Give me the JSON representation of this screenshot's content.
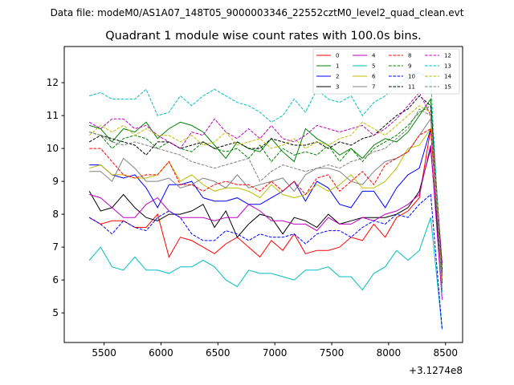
{
  "data_file_label": "Data file: modeM0/AS1A07_148T05_9000003346_22552cztM0_level2_quad_clean.evt",
  "chart_data": {
    "type": "line",
    "title": "Quadrant 1 module wise count rates with 100.0s bins.",
    "xlabel": "",
    "ylabel": "",
    "x_offset_label": "+3.1274e8",
    "xlim": [
      5150,
      8650
    ],
    "ylim": [
      4.1,
      13.1
    ],
    "x_ticks": [
      5500,
      6000,
      6500,
      7000,
      7500,
      8000,
      8500
    ],
    "y_ticks": [
      5,
      6,
      7,
      8,
      9,
      10,
      11,
      12
    ],
    "legend_location": "upper right",
    "x": [
      5370,
      5470,
      5570,
      5670,
      5770,
      5870,
      5970,
      6070,
      6170,
      6270,
      6370,
      6470,
      6570,
      6670,
      6770,
      6870,
      6970,
      7070,
      7170,
      7270,
      7370,
      7470,
      7570,
      7670,
      7770,
      7870,
      7970,
      8070,
      8170,
      8270,
      8370,
      8470
    ],
    "series": [
      {
        "name": "0",
        "color": "#ff0000",
        "dash": "solid",
        "values": [
          7.9,
          7.7,
          7.8,
          7.8,
          7.6,
          7.6,
          8.0,
          6.7,
          7.3,
          7.2,
          7.0,
          6.8,
          7.1,
          7.3,
          7.0,
          6.7,
          7.2,
          6.9,
          7.4,
          6.8,
          6.9,
          6.9,
          7.0,
          7.3,
          7.2,
          7.7,
          7.3,
          7.9,
          8.1,
          8.5,
          10.6,
          6.0
        ]
      },
      {
        "name": "1",
        "color": "#008000",
        "dash": "solid",
        "values": [
          10.7,
          10.6,
          10.2,
          10.6,
          10.5,
          10.8,
          10.3,
          10.6,
          10.8,
          10.7,
          10.5,
          10.1,
          9.7,
          10.2,
          10.0,
          9.9,
          10.3,
          9.9,
          9.6,
          10.6,
          10.3,
          10.1,
          9.8,
          10.0,
          9.7,
          10.1,
          10.3,
          10.2,
          10.5,
          11.0,
          11.5,
          6.2
        ]
      },
      {
        "name": "2",
        "color": "#0000ff",
        "dash": "solid",
        "values": [
          9.5,
          9.5,
          9.2,
          9.1,
          9.2,
          8.8,
          8.2,
          8.9,
          8.9,
          9.0,
          8.5,
          8.4,
          8.4,
          8.5,
          8.3,
          8.3,
          8.5,
          8.7,
          9.0,
          8.4,
          9.0,
          8.8,
          8.3,
          8.2,
          8.7,
          8.7,
          8.2,
          8.8,
          9.2,
          9.4,
          10.6,
          6.2
        ]
      },
      {
        "name": "3",
        "color": "#000000",
        "dash": "solid",
        "values": [
          8.7,
          8.1,
          8.2,
          8.6,
          8.2,
          7.9,
          7.8,
          8.0,
          8.0,
          8.1,
          8.3,
          7.6,
          8.1,
          7.3,
          7.7,
          8.0,
          7.9,
          7.4,
          7.9,
          7.8,
          7.6,
          8.0,
          7.7,
          7.8,
          7.9,
          7.9,
          7.9,
          8.0,
          8.2,
          8.7,
          10.0,
          5.9
        ]
      },
      {
        "name": "4",
        "color": "#bf00bf",
        "dash": "solid",
        "values": [
          8.6,
          8.5,
          8.2,
          7.9,
          7.9,
          8.3,
          8.5,
          8.1,
          7.9,
          7.9,
          7.9,
          7.8,
          7.9,
          7.9,
          8.3,
          8.1,
          7.8,
          7.8,
          7.7,
          7.7,
          7.5,
          7.9,
          7.7,
          7.7,
          7.9,
          7.8,
          8.0,
          8.1,
          8.3,
          8.6,
          10.1,
          5.4
        ]
      },
      {
        "name": "5",
        "color": "#00bfbf",
        "dash": "solid",
        "values": [
          6.6,
          7.0,
          6.4,
          6.3,
          6.7,
          6.3,
          6.3,
          6.2,
          6.4,
          6.4,
          6.6,
          6.4,
          6.0,
          5.8,
          6.3,
          6.2,
          6.2,
          6.1,
          6.0,
          6.3,
          6.3,
          6.4,
          6.1,
          6.1,
          5.7,
          6.2,
          6.4,
          6.9,
          6.6,
          6.9,
          7.9,
          4.5
        ]
      },
      {
        "name": "6",
        "color": "#bfbf00",
        "dash": "solid",
        "values": [
          9.4,
          9.5,
          9.2,
          9.2,
          9.1,
          9.1,
          9.2,
          9.6,
          9.0,
          9.2,
          8.9,
          8.7,
          8.8,
          8.8,
          8.7,
          8.5,
          8.9,
          8.6,
          8.5,
          8.6,
          8.9,
          8.7,
          8.9,
          9.2,
          8.8,
          8.8,
          9.0,
          9.4,
          10.0,
          10.1,
          10.6,
          6.4
        ]
      },
      {
        "name": "7",
        "color": "#808080",
        "dash": "solid",
        "values": [
          9.3,
          9.3,
          9.0,
          9.7,
          9.4,
          9.0,
          9.0,
          9.1,
          8.8,
          8.9,
          9.1,
          9.0,
          8.8,
          9.2,
          8.8,
          8.9,
          9.0,
          9.1,
          8.7,
          9.2,
          9.4,
          9.4,
          9.3,
          9.0,
          8.9,
          9.3,
          9.6,
          9.7,
          9.9,
          10.4,
          10.9,
          6.5
        ]
      },
      {
        "name": "8",
        "color": "#ff0000",
        "dash": "dashed",
        "values": [
          10.0,
          10.0,
          9.6,
          9.2,
          9.1,
          9.2,
          9.2,
          9.6,
          8.9,
          8.9,
          8.7,
          8.9,
          9.0,
          8.9,
          8.9,
          8.7,
          9.0,
          8.7,
          9.0,
          8.6,
          9.1,
          9.2,
          8.7,
          9.0,
          9.3,
          8.9,
          9.5,
          9.7,
          9.9,
          10.4,
          10.6,
          6.1
        ]
      },
      {
        "name": "9",
        "color": "#008000",
        "dash": "dashed",
        "values": [
          10.5,
          10.4,
          10.0,
          10.3,
          10.4,
          10.3,
          10.0,
          10.2,
          10.0,
          9.9,
          10.2,
          10.0,
          9.9,
          10.0,
          9.7,
          10.1,
          9.6,
          10.0,
          9.8,
          9.9,
          9.8,
          10.1,
          9.6,
          10.0,
          9.6,
          10.0,
          10.2,
          10.4,
          10.7,
          11.1,
          11.3,
          5.9
        ]
      },
      {
        "name": "10",
        "color": "#0000ff",
        "dash": "dashed",
        "values": [
          7.9,
          7.7,
          7.4,
          7.8,
          7.6,
          7.5,
          7.9,
          8.1,
          7.9,
          7.4,
          7.2,
          7.2,
          7.5,
          7.4,
          7.2,
          7.4,
          7.3,
          7.3,
          7.4,
          7.1,
          7.4,
          7.5,
          7.5,
          7.3,
          7.6,
          7.8,
          7.7,
          8.0,
          7.9,
          8.3,
          8.6,
          4.5
        ]
      },
      {
        "name": "11",
        "color": "#000000",
        "dash": "dashed",
        "values": [
          10.2,
          10.4,
          10.3,
          10.2,
          10.1,
          9.8,
          10.2,
          10.2,
          10.0,
          10.1,
          10.2,
          10.0,
          10.1,
          10.2,
          10.0,
          10.0,
          10.3,
          10.2,
          10.1,
          10.1,
          10.2,
          10.0,
          10.2,
          10.1,
          10.3,
          10.4,
          10.7,
          11.0,
          11.2,
          11.6,
          11.3,
          6.3
        ]
      },
      {
        "name": "12",
        "color": "#bf00bf",
        "dash": "dashed",
        "values": [
          10.8,
          10.6,
          10.9,
          10.9,
          10.6,
          10.7,
          10.4,
          10.2,
          10.0,
          10.5,
          10.4,
          10.9,
          10.5,
          10.3,
          10.6,
          10.3,
          10.7,
          10.3,
          10.2,
          10.4,
          10.7,
          10.6,
          10.5,
          10.6,
          10.7,
          10.4,
          10.6,
          10.9,
          11.3,
          11.7,
          11.0,
          6.5
        ]
      },
      {
        "name": "13",
        "color": "#00bfbf",
        "dash": "dashed",
        "values": [
          11.6,
          11.7,
          11.5,
          11.5,
          11.5,
          11.8,
          11.0,
          11.1,
          11.6,
          11.3,
          11.6,
          11.8,
          11.6,
          11.4,
          11.3,
          11.1,
          10.8,
          11.0,
          11.5,
          11.1,
          11.8,
          11.5,
          11.4,
          11.6,
          11.0,
          11.4,
          11.6,
          11.9,
          12.2,
          12.3,
          12.1,
          5.6
        ]
      },
      {
        "name": "14",
        "color": "#bfbf00",
        "dash": "dashed",
        "values": [
          10.4,
          10.7,
          10.5,
          10.7,
          10.4,
          10.6,
          10.4,
          10.4,
          10.2,
          10.4,
          10.1,
          10.2,
          10.5,
          10.1,
          10.2,
          10.3,
          10.0,
          10.1,
          10.3,
          10.0,
          10.2,
          10.1,
          10.3,
          10.4,
          10.8,
          10.6,
          10.4,
          10.7,
          11.0,
          11.3,
          11.1,
          6.0
        ]
      },
      {
        "name": "15",
        "color": "#808080",
        "dash": "dashed",
        "values": [
          10.5,
          10.4,
          10.2,
          10.1,
          10.2,
          10.1,
          10.0,
          9.9,
          9.8,
          9.6,
          9.5,
          9.4,
          9.5,
          9.6,
          9.7,
          9.0,
          9.3,
          9.5,
          9.4,
          9.3,
          9.4,
          9.5,
          9.4,
          9.6,
          9.7,
          9.9,
          10.0,
          10.3,
          10.6,
          11.2,
          11.0,
          5.7
        ]
      }
    ]
  }
}
